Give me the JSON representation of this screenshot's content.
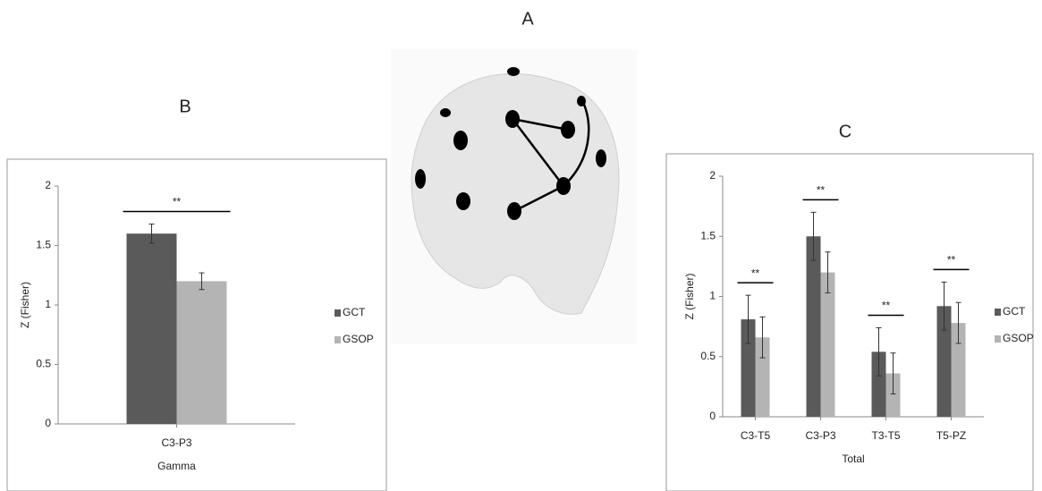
{
  "panel_a": {
    "label": "A"
  },
  "chart_data": [
    {
      "type": "bar",
      "label": "B",
      "ylabel": "Z (Fisher)",
      "xlabel": "Gamma",
      "categories": [
        "C3-P3"
      ],
      "significance": [
        "**"
      ],
      "series": [
        {
          "name": "GCT",
          "color": "#5a5a5a",
          "values": [
            1.6
          ],
          "errors": [
            0.08
          ]
        },
        {
          "name": "GSOP",
          "color": "#b4b4b4",
          "values": [
            1.2
          ],
          "errors": [
            0.07
          ]
        }
      ],
      "ylim": [
        0,
        2
      ],
      "yticks": [
        0,
        0.5,
        1,
        1.5,
        2
      ],
      "legend": "right"
    },
    {
      "type": "bar",
      "label": "C",
      "ylabel": "Z (Fisher)",
      "xlabel": "Total",
      "categories": [
        "C3-T5",
        "C3-P3",
        "T3-T5",
        "T5-PZ"
      ],
      "significance": [
        "**",
        "**",
        "**",
        "**"
      ],
      "series": [
        {
          "name": "GCT",
          "color": "#5a5a5a",
          "values": [
            0.81,
            1.5,
            0.54,
            0.92
          ],
          "errors": [
            0.2,
            0.2,
            0.2,
            0.2
          ]
        },
        {
          "name": "GSOP",
          "color": "#b4b4b4",
          "values": [
            0.66,
            1.2,
            0.36,
            0.78
          ],
          "errors": [
            0.17,
            0.17,
            0.17,
            0.17
          ]
        }
      ],
      "ylim": [
        0,
        2
      ],
      "yticks": [
        0,
        0.5,
        1,
        1.5,
        2
      ],
      "legend": "right"
    }
  ]
}
